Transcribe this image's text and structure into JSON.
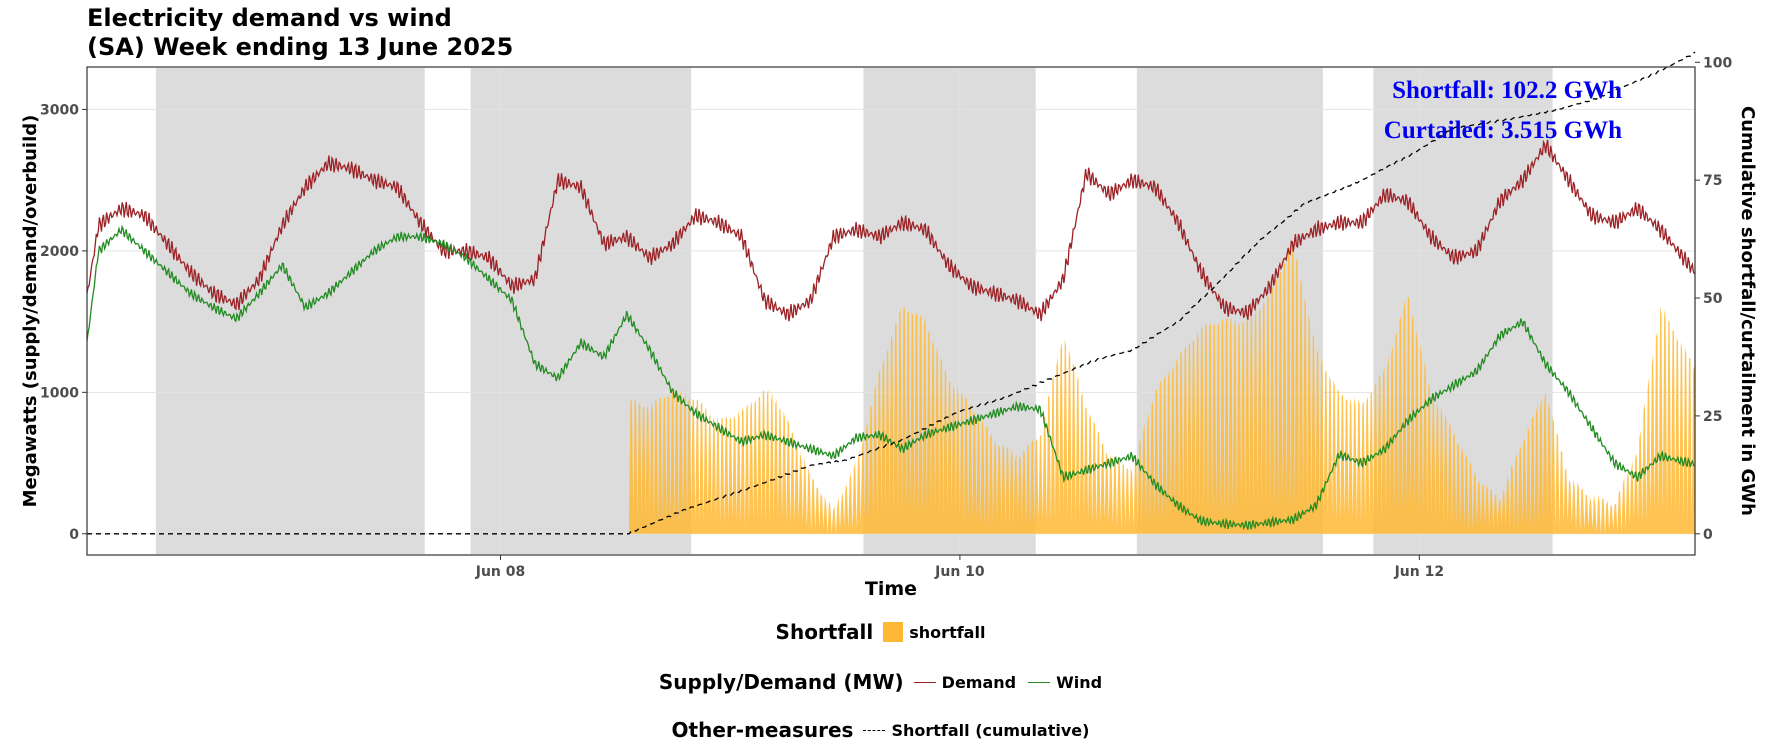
{
  "title": {
    "line1": "Electricity demand vs wind",
    "line2": "(SA) Week ending 13 June 2025"
  },
  "annotations": {
    "shortfall": "Shortfall: 102.2 GWh",
    "curtailed": "Curtailed: 3.515 GWh"
  },
  "colors": {
    "demand": "#9b2226",
    "wind": "#228b22",
    "shortfall": "#ffb833",
    "cumulative": "#000000",
    "night": "#dcdcdc",
    "annotation": "#0000ee"
  },
  "legend": {
    "shortfall_title": "Shortfall",
    "shortfall_item": "shortfall",
    "supply_title": "Supply/Demand (MW)",
    "demand_item": "Demand",
    "wind_item": "Wind",
    "other_title": "Other-measures",
    "cumulative_item": "Shortfall (cumulative)"
  },
  "chart_data": {
    "type": "line",
    "title": "Electricity demand vs wind (SA) Week ending 13 June 2025",
    "xlabel": "Time",
    "ylabel": "Megawatts (supply/demand/overbuild)",
    "y2label": "Cumulative shortfall/curtailment in GWh",
    "x_unit": "days since 2025-06-06 00:00",
    "xlim": [
      6.2,
      13.2
    ],
    "ylim": [
      -150,
      3300
    ],
    "y2lim": [
      -4.5,
      99
    ],
    "x_ticks": [
      {
        "x": 8,
        "label": "Jun 08"
      },
      {
        "x": 10,
        "label": "Jun 10"
      },
      {
        "x": 12,
        "label": "Jun 12"
      }
    ],
    "y_ticks": [
      0,
      1000,
      2000,
      3000
    ],
    "y2_ticks": [
      0,
      25,
      50,
      75,
      100
    ],
    "night_shading": [
      [
        6.5,
        7.67
      ],
      [
        7.87,
        8.83
      ],
      [
        9.58,
        10.33
      ],
      [
        10.77,
        11.58
      ],
      [
        11.8,
        12.58
      ]
    ],
    "series": [
      {
        "name": "Demand",
        "x": [
          6.2,
          6.25,
          6.35,
          6.45,
          6.55,
          6.65,
          6.75,
          6.85,
          6.95,
          7.05,
          7.15,
          7.25,
          7.35,
          7.45,
          7.55,
          7.65,
          7.75,
          7.85,
          7.95,
          8.05,
          8.15,
          8.25,
          8.35,
          8.45,
          8.55,
          8.65,
          8.75,
          8.85,
          8.95,
          9.05,
          9.15,
          9.25,
          9.35,
          9.45,
          9.55,
          9.65,
          9.75,
          9.85,
          9.95,
          10.05,
          10.15,
          10.25,
          10.35,
          10.45,
          10.55,
          10.65,
          10.75,
          10.85,
          10.95,
          11.05,
          11.15,
          11.25,
          11.35,
          11.45,
          11.55,
          11.65,
          11.75,
          11.85,
          11.95,
          12.05,
          12.15,
          12.25,
          12.35,
          12.45,
          12.55,
          12.65,
          12.75,
          12.85,
          12.95,
          13.05,
          13.2
        ],
        "values": [
          1680,
          2180,
          2300,
          2250,
          2050,
          1850,
          1700,
          1620,
          1800,
          2180,
          2450,
          2620,
          2580,
          2500,
          2450,
          2200,
          2000,
          2000,
          1950,
          1750,
          1800,
          2500,
          2450,
          2050,
          2100,
          1950,
          2050,
          2250,
          2200,
          2100,
          1650,
          1550,
          1650,
          2100,
          2150,
          2100,
          2200,
          2150,
          1900,
          1750,
          1700,
          1650,
          1550,
          1800,
          2550,
          2400,
          2500,
          2450,
          2200,
          1850,
          1600,
          1560,
          1750,
          2050,
          2150,
          2200,
          2200,
          2400,
          2350,
          2100,
          1950,
          2000,
          2350,
          2500,
          2750,
          2500,
          2250,
          2200,
          2300,
          2150,
          1850
        ]
      },
      {
        "name": "Wind",
        "x": [
          6.2,
          6.25,
          6.35,
          6.45,
          6.55,
          6.65,
          6.75,
          6.85,
          6.95,
          7.05,
          7.15,
          7.25,
          7.35,
          7.45,
          7.55,
          7.65,
          7.75,
          7.85,
          7.95,
          8.05,
          8.15,
          8.25,
          8.35,
          8.45,
          8.55,
          8.65,
          8.75,
          8.85,
          8.95,
          9.05,
          9.15,
          9.25,
          9.35,
          9.45,
          9.55,
          9.65,
          9.75,
          9.85,
          9.95,
          10.05,
          10.15,
          10.25,
          10.35,
          10.45,
          10.55,
          10.65,
          10.75,
          10.85,
          10.95,
          11.05,
          11.15,
          11.25,
          11.35,
          11.45,
          11.55,
          11.65,
          11.75,
          11.85,
          11.95,
          12.05,
          12.15,
          12.25,
          12.35,
          12.45,
          12.55,
          12.65,
          12.75,
          12.85,
          12.95,
          13.05,
          13.2
        ],
        "values": [
          1350,
          2000,
          2150,
          2000,
          1850,
          1700,
          1600,
          1520,
          1700,
          1900,
          1600,
          1700,
          1850,
          2000,
          2100,
          2100,
          2050,
          1950,
          1800,
          1650,
          1200,
          1100,
          1350,
          1250,
          1550,
          1300,
          1000,
          850,
          750,
          650,
          700,
          650,
          600,
          550,
          680,
          700,
          600,
          700,
          750,
          800,
          850,
          900,
          880,
          400,
          450,
          500,
          550,
          350,
          200,
          90,
          70,
          60,
          80,
          100,
          200,
          560,
          500,
          600,
          800,
          950,
          1050,
          1150,
          1400,
          1500,
          1200,
          1000,
          750,
          500,
          400,
          550,
          490
        ]
      },
      {
        "name": "shortfall",
        "x": [
          6.2,
          8.55,
          8.56,
          8.65,
          8.75,
          8.85,
          8.95,
          9.05,
          9.15,
          9.2,
          9.25,
          9.35,
          9.45,
          9.55,
          9.65,
          9.75,
          9.85,
          9.95,
          10.05,
          10.15,
          10.25,
          10.35,
          10.45,
          10.55,
          10.65,
          10.75,
          10.85,
          10.95,
          11.05,
          11.15,
          11.25,
          11.35,
          11.45,
          11.55,
          11.65,
          11.75,
          11.85,
          11.95,
          12.05,
          12.15,
          12.25,
          12.35,
          12.45,
          12.55,
          12.65,
          12.75,
          12.85,
          12.95,
          13.05,
          13.2
        ],
        "values": [
          0,
          0,
          950,
          900,
          1000,
          950,
          800,
          850,
          1000,
          950,
          800,
          400,
          150,
          500,
          1150,
          1600,
          1500,
          1100,
          900,
          650,
          550,
          700,
          1400,
          900,
          550,
          450,
          1000,
          1250,
          1450,
          1500,
          1500,
          1700,
          2050,
          1300,
          1000,
          900,
          1150,
          1700,
          1000,
          700,
          400,
          250,
          650,
          1000,
          400,
          250,
          200,
          600,
          1600,
          1150
        ]
      },
      {
        "name": "Shortfall (cumulative)",
        "axis": "y2",
        "x": [
          6.2,
          8.55,
          8.8,
          9.1,
          9.35,
          9.5,
          9.75,
          10.0,
          10.2,
          10.45,
          10.6,
          10.75,
          10.95,
          11.1,
          11.3,
          11.5,
          11.75,
          11.95,
          12.15,
          12.4,
          12.6,
          12.75,
          12.9,
          13.0,
          13.2
        ],
        "values": [
          0,
          0,
          5,
          10,
          14.5,
          15.5,
          20,
          26,
          29,
          34,
          37,
          39,
          45,
          52,
          62,
          70,
          75,
          80,
          86,
          88,
          90,
          92,
          95,
          97,
          102
        ]
      }
    ]
  }
}
